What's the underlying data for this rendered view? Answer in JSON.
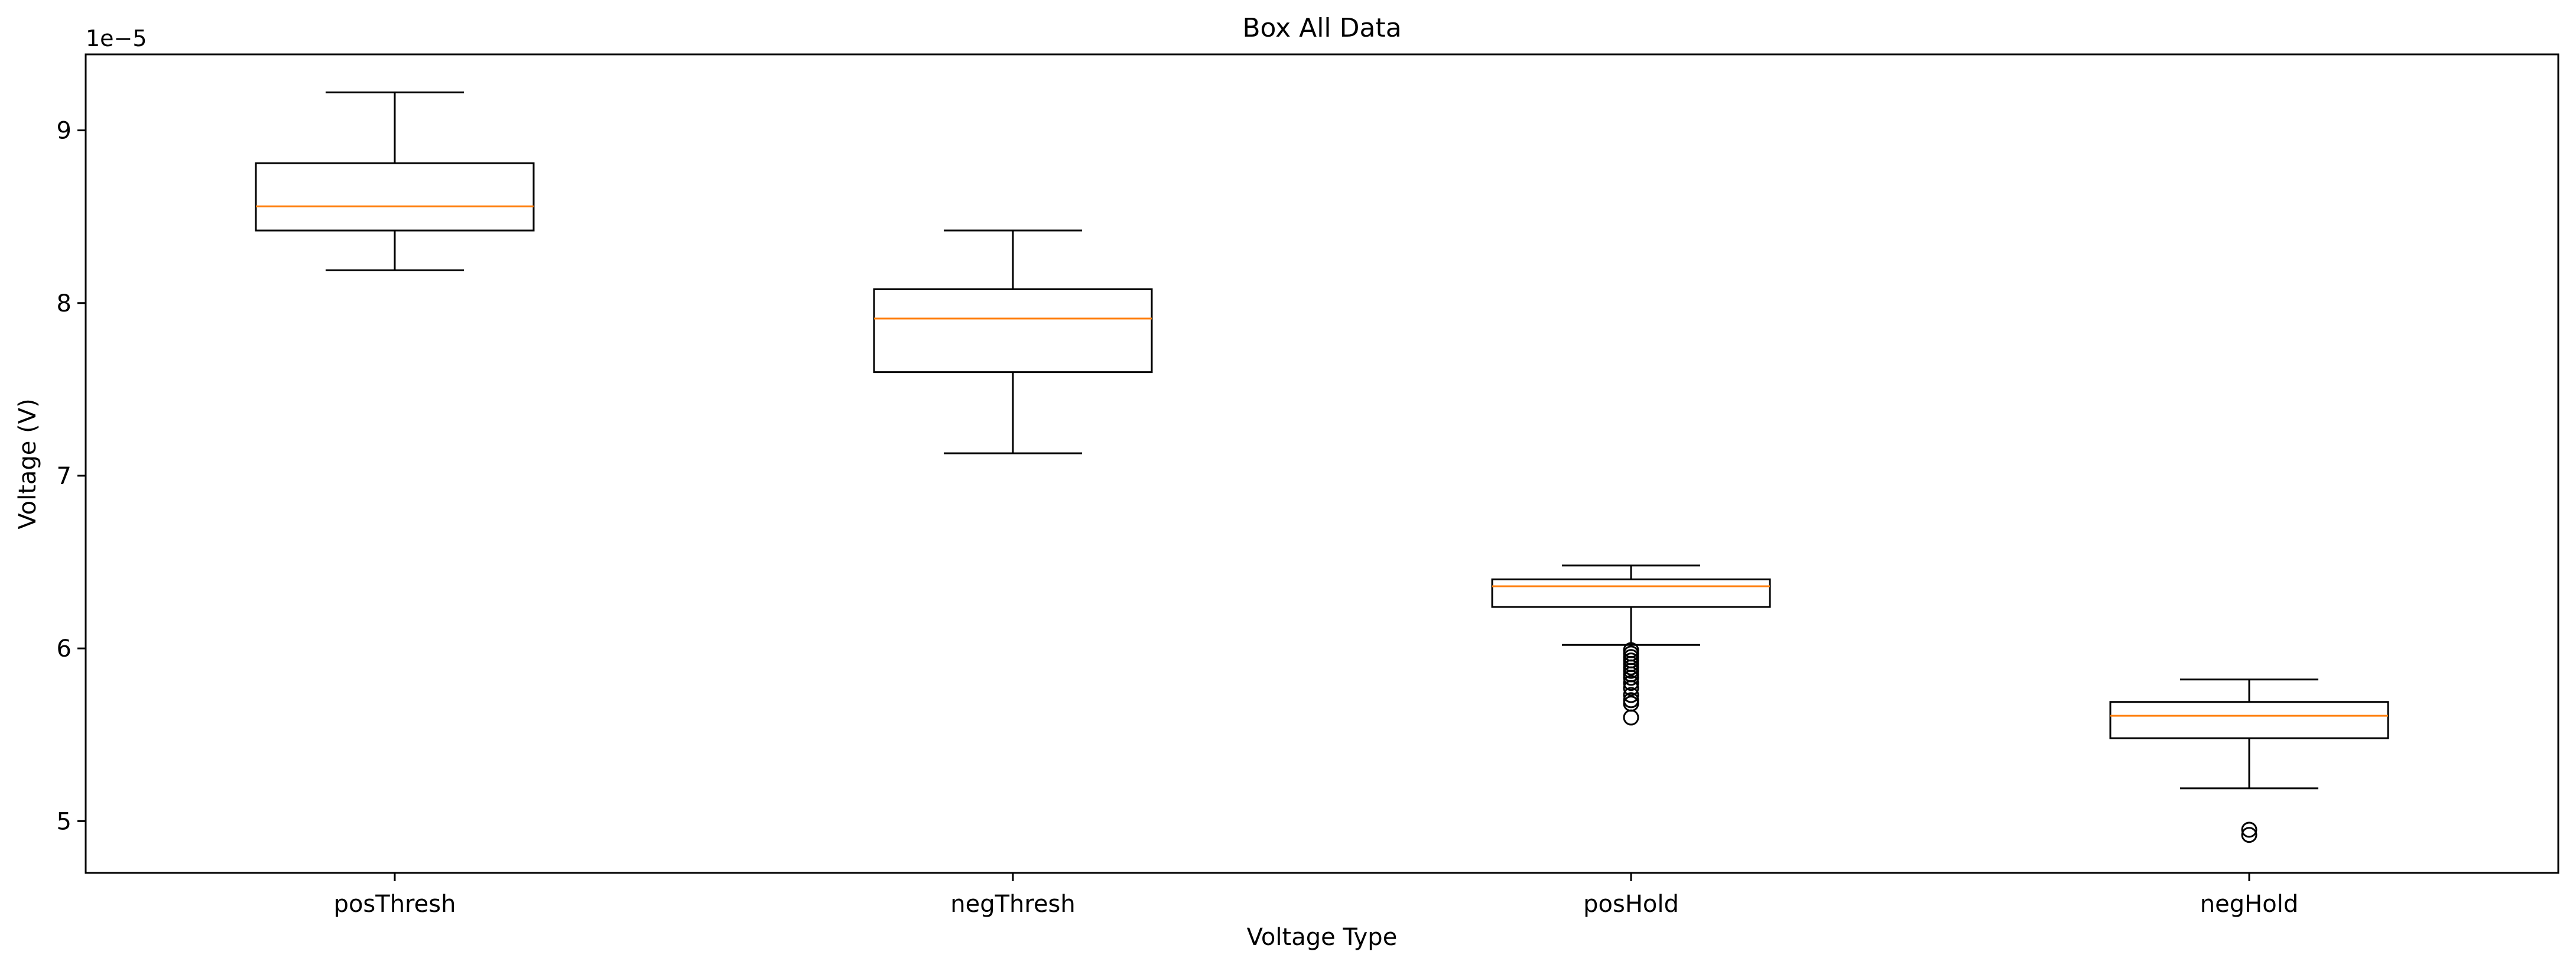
{
  "chart_data": {
    "type": "box",
    "title": "Box All Data",
    "xlabel": "Voltage Type",
    "ylabel": "Voltage (V)",
    "y_offset_label": "1e−5",
    "ylim": [
      4.7,
      9.44
    ],
    "yticks": [
      5,
      6,
      7,
      8,
      9
    ],
    "ytick_labels": [
      "5",
      "6",
      "7",
      "8",
      "9"
    ],
    "grid": false,
    "legend": "none",
    "categories": [
      "posThresh",
      "negThresh",
      "posHold",
      "negHold"
    ],
    "boxes": [
      {
        "category": "posThresh",
        "whisker_low": 8.19,
        "q1": 8.42,
        "median": 8.56,
        "q3": 8.81,
        "whisker_high": 9.22,
        "outliers": []
      },
      {
        "category": "negThresh",
        "whisker_low": 7.13,
        "q1": 7.6,
        "median": 7.91,
        "q3": 8.08,
        "whisker_high": 8.42,
        "outliers": []
      },
      {
        "category": "posHold",
        "whisker_low": 6.02,
        "q1": 6.24,
        "median": 6.36,
        "q3": 6.4,
        "whisker_high": 6.48,
        "outliers": [
          5.99,
          5.97,
          5.95,
          5.93,
          5.91,
          5.89,
          5.87,
          5.85,
          5.83,
          5.8,
          5.77,
          5.73,
          5.7,
          5.68,
          5.6
        ]
      },
      {
        "category": "negHold",
        "whisker_low": 5.19,
        "q1": 5.48,
        "median": 5.61,
        "q3": 5.69,
        "whisker_high": 5.82,
        "outliers": [
          4.95,
          4.92
        ]
      }
    ],
    "colors": {
      "box": "#000000",
      "median": "#ff7f0e",
      "background": "#ffffff"
    }
  }
}
